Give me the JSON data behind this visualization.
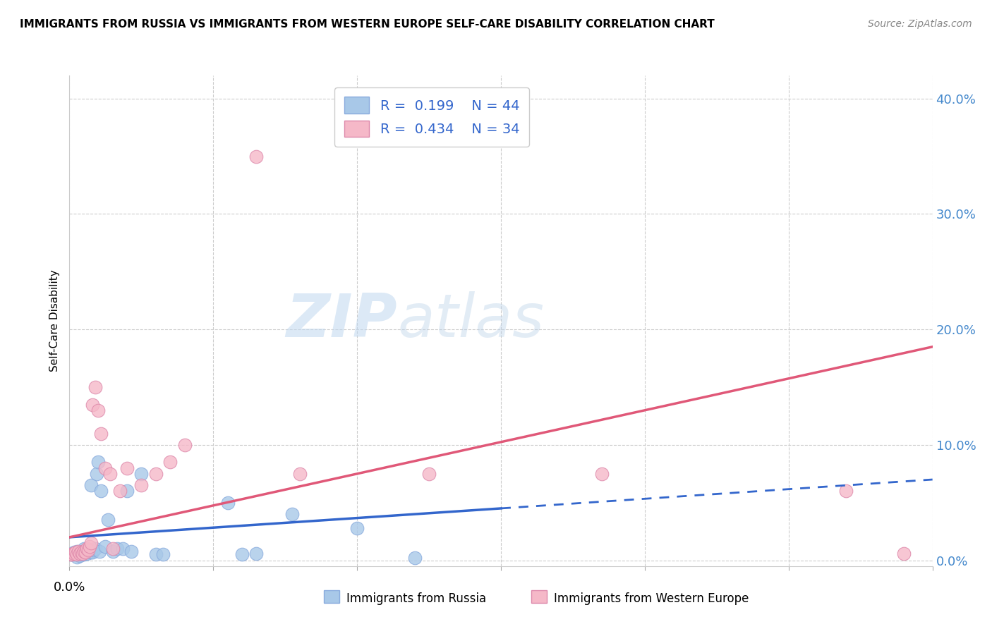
{
  "title": "IMMIGRANTS FROM RUSSIA VS IMMIGRANTS FROM WESTERN EUROPE SELF-CARE DISABILITY CORRELATION CHART",
  "source": "Source: ZipAtlas.com",
  "ylabel": "Self-Care Disability",
  "ytick_vals": [
    0.0,
    0.1,
    0.2,
    0.3,
    0.4
  ],
  "xlim": [
    0.0,
    0.6
  ],
  "ylim": [
    -0.005,
    0.42
  ],
  "legend_label1": "Immigrants from Russia",
  "legend_label2": "Immigrants from Western Europe",
  "R1": 0.199,
  "N1": 44,
  "R2": 0.434,
  "N2": 34,
  "color1": "#a8c8e8",
  "color2": "#f5b8c8",
  "line_color1": "#3366cc",
  "line_color2": "#e05878",
  "watermark_zip": "ZIP",
  "watermark_atlas": "atlas",
  "russia_x": [
    0.001,
    0.002,
    0.003,
    0.003,
    0.004,
    0.005,
    0.005,
    0.006,
    0.007,
    0.007,
    0.008,
    0.009,
    0.01,
    0.01,
    0.011,
    0.012,
    0.012,
    0.013,
    0.014,
    0.015,
    0.015,
    0.016,
    0.017,
    0.018,
    0.019,
    0.02,
    0.021,
    0.022,
    0.025,
    0.027,
    0.03,
    0.033,
    0.037,
    0.04,
    0.043,
    0.05,
    0.06,
    0.065,
    0.11,
    0.12,
    0.13,
    0.155,
    0.2,
    0.24
  ],
  "russia_y": [
    0.005,
    0.005,
    0.005,
    0.007,
    0.005,
    0.003,
    0.008,
    0.005,
    0.004,
    0.007,
    0.005,
    0.008,
    0.005,
    0.01,
    0.007,
    0.006,
    0.009,
    0.008,
    0.009,
    0.007,
    0.065,
    0.007,
    0.009,
    0.01,
    0.075,
    0.085,
    0.008,
    0.06,
    0.012,
    0.035,
    0.008,
    0.01,
    0.01,
    0.06,
    0.008,
    0.075,
    0.005,
    0.005,
    0.05,
    0.005,
    0.006,
    0.04,
    0.028,
    0.002
  ],
  "western_x": [
    0.001,
    0.002,
    0.003,
    0.004,
    0.005,
    0.006,
    0.007,
    0.008,
    0.009,
    0.01,
    0.011,
    0.012,
    0.013,
    0.014,
    0.015,
    0.016,
    0.018,
    0.02,
    0.022,
    0.025,
    0.028,
    0.03,
    0.035,
    0.04,
    0.05,
    0.06,
    0.07,
    0.08,
    0.13,
    0.16,
    0.25,
    0.37,
    0.54,
    0.58
  ],
  "western_y": [
    0.005,
    0.005,
    0.006,
    0.007,
    0.005,
    0.008,
    0.006,
    0.007,
    0.006,
    0.008,
    0.007,
    0.01,
    0.009,
    0.012,
    0.015,
    0.135,
    0.15,
    0.13,
    0.11,
    0.08,
    0.075,
    0.01,
    0.06,
    0.08,
    0.065,
    0.075,
    0.085,
    0.1,
    0.35,
    0.075,
    0.075,
    0.075,
    0.06,
    0.006
  ],
  "trend_russia_x0": 0.0,
  "trend_russia_y0": 0.02,
  "trend_russia_x1": 0.6,
  "trend_russia_y1": 0.07,
  "trend_russia_solid_end": 0.3,
  "trend_west_x0": 0.0,
  "trend_west_y0": 0.02,
  "trend_west_x1": 0.6,
  "trend_west_y1": 0.185
}
